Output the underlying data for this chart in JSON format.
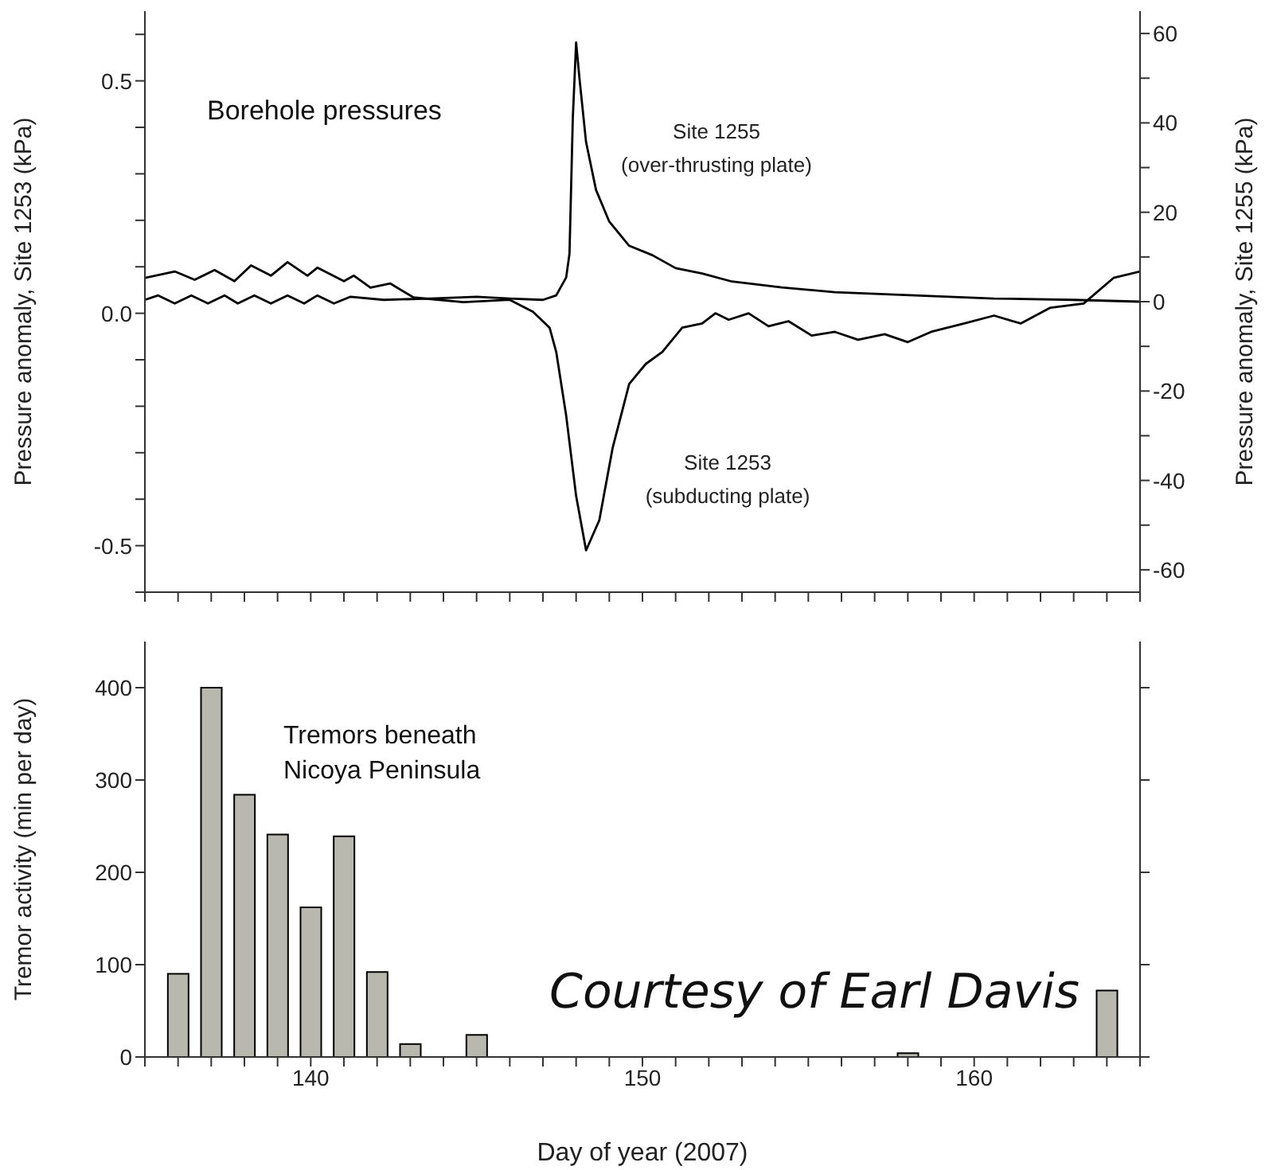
{
  "chart_data": [
    {
      "type": "line",
      "ylabel": "Pressure anomaly, Site 1253 (kPa)",
      "y2label": "Pressure anomaly, Site 1255 (kPa)",
      "annotations": [
        "Borehole pressures"
      ],
      "xlim": [
        135,
        165
      ],
      "ylim": [
        -0.6,
        0.65
      ],
      "y2lim": [
        -65,
        65
      ],
      "tick_labels": "y",
      "xticks": [
        {
          "value": 135,
          "label": null
        },
        {
          "value": 136,
          "label": null
        },
        {
          "value": 137,
          "label": null
        },
        {
          "value": 138,
          "label": null
        },
        {
          "value": 139,
          "label": null
        },
        {
          "value": 140,
          "label": null
        },
        {
          "value": 141,
          "label": null
        },
        {
          "value": 142,
          "label": null
        },
        {
          "value": 143,
          "label": null
        },
        {
          "value": 144,
          "label": null
        },
        {
          "value": 145,
          "label": null
        },
        {
          "value": 146,
          "label": null
        },
        {
          "value": 147,
          "label": null
        },
        {
          "value": 148,
          "label": null
        },
        {
          "value": 149,
          "label": null
        },
        {
          "value": 150,
          "label": null
        },
        {
          "value": 151,
          "label": null
        },
        {
          "value": 152,
          "label": null
        },
        {
          "value": 153,
          "label": null
        },
        {
          "value": 154,
          "label": null
        },
        {
          "value": 155,
          "label": null
        },
        {
          "value": 156,
          "label": null
        },
        {
          "value": 157,
          "label": null
        },
        {
          "value": 158,
          "label": null
        },
        {
          "value": 159,
          "label": null
        },
        {
          "value": 160,
          "label": null
        },
        {
          "value": 161,
          "label": null
        },
        {
          "value": 162,
          "label": null
        },
        {
          "value": 163,
          "label": null
        },
        {
          "value": 164,
          "label": null
        },
        {
          "value": 165,
          "label": null
        }
      ],
      "yticks": [
        {
          "value": -0.6,
          "label": null
        },
        -0.5,
        {
          "value": -0.4,
          "label": null
        },
        {
          "value": -0.3,
          "label": null
        },
        {
          "value": -0.2,
          "label": null
        },
        {
          "value": -0.1,
          "label": null
        },
        {
          "value": 0,
          "label": "0.0"
        },
        {
          "value": 0.1,
          "label": null
        },
        {
          "value": 0.2,
          "label": null
        },
        {
          "value": 0.3,
          "label": null
        },
        {
          "value": 0.4,
          "label": null
        },
        0.5,
        {
          "value": 0.6,
          "label": null
        }
      ],
      "y2ticks": [
        -60,
        {
          "value": -50,
          "label": null
        },
        -40,
        {
          "value": -30,
          "label": null
        },
        -20,
        {
          "value": -10,
          "label": null
        },
        0,
        {
          "value": 10,
          "label": null
        },
        20,
        {
          "value": 30,
          "label": null
        },
        40,
        {
          "value": 50,
          "label": null
        },
        60
      ],
      "series": [
        {
          "name": "Site 1253\n(subducting plate)",
          "color": "#000000",
          "x": [
            135,
            135.9,
            136.5,
            137.1,
            137.7,
            138.2,
            138.8,
            139.3,
            139.9,
            140.2,
            141,
            141.3,
            141.8,
            142.4,
            143.1,
            144.6,
            146,
            146.7,
            147.2,
            147.4,
            147.7,
            148,
            148.3,
            148.7,
            149.1,
            149.6,
            150.1,
            150.6,
            151.2,
            151.8,
            152.2,
            152.6,
            153.2,
            153.8,
            154.4,
            155.1,
            155.8,
            156.5,
            157.3,
            158,
            158.7,
            159.7,
            160.6,
            161.4,
            162.3,
            163.3,
            164.2,
            165
          ],
          "values": [
            0.076,
            0.09,
            0.072,
            0.093,
            0.069,
            0.103,
            0.081,
            0.11,
            0.081,
            0.098,
            0.069,
            0.081,
            0.055,
            0.064,
            0.034,
            0.024,
            0.029,
            0.003,
            -0.031,
            -0.083,
            -0.22,
            -0.393,
            -0.51,
            -0.445,
            -0.29,
            -0.152,
            -0.109,
            -0.083,
            -0.031,
            -0.022,
            0,
            -0.014,
            0,
            -0.028,
            -0.017,
            -0.048,
            -0.04,
            -0.057,
            -0.045,
            -0.062,
            -0.04,
            -0.022,
            -0.005,
            -0.022,
            0.012,
            0.021,
            0.076,
            0.09
          ]
        },
        {
          "name": "Site 1255\n(over-thrusting plate)",
          "color": "#000000",
          "axis": "y2",
          "x": [
            135,
            135.4,
            135.9,
            136.4,
            136.9,
            137.4,
            137.8,
            138.3,
            138.8,
            139.3,
            139.8,
            140.2,
            140.7,
            141.2,
            142.2,
            143.6,
            145,
            146,
            147,
            147.4,
            147.7,
            147.8,
            147.9,
            148,
            148.1,
            148.3,
            148.6,
            149,
            149.6,
            150.3,
            151,
            151.8,
            152.7,
            154.2,
            155.8,
            158.2,
            160.6,
            163,
            165
          ],
          "values": [
            0.4,
            1.4,
            -0.4,
            1.4,
            -0.4,
            1.4,
            -0.4,
            1.4,
            -0.4,
            1.4,
            -0.4,
            1.4,
            -0.4,
            1.1,
            0.4,
            0.7,
            1.1,
            0.7,
            0.4,
            1.4,
            5.4,
            10.7,
            41,
            58,
            50,
            35.7,
            25,
            17.9,
            12.5,
            10.4,
            7.5,
            6.3,
            4.5,
            3.2,
            2.1,
            1.4,
            0.7,
            0.4,
            0
          ]
        }
      ]
    },
    {
      "type": "bar",
      "xlabel": "Day of year (2007)",
      "ylabel": "Tremor activity (min per day)",
      "annotations": [
        "Tremors beneath\nNicoya Peninsula",
        "Courtesy of Earl Davis"
      ],
      "xlim": [
        135,
        165
      ],
      "ylim": [
        0,
        450
      ],
      "yticks": [
        0,
        100,
        200,
        300,
        400
      ],
      "color": "#b8b8ae",
      "xticks": [
        {
          "value": 135,
          "label": null
        },
        {
          "value": 136,
          "label": null
        },
        {
          "value": 137,
          "label": null
        },
        {
          "value": 138,
          "label": null
        },
        {
          "value": 139,
          "label": null
        },
        140,
        {
          "value": 141,
          "label": null
        },
        {
          "value": 142,
          "label": null
        },
        {
          "value": 143,
          "label": null
        },
        {
          "value": 144,
          "label": null
        },
        {
          "value": 145,
          "label": null
        },
        {
          "value": 146,
          "label": null
        },
        {
          "value": 147,
          "label": null
        },
        {
          "value": 148,
          "label": null
        },
        {
          "value": 149,
          "label": null
        },
        150,
        {
          "value": 151,
          "label": null
        },
        {
          "value": 152,
          "label": null
        },
        {
          "value": 153,
          "label": null
        },
        {
          "value": 154,
          "label": null
        },
        {
          "value": 155,
          "label": null
        },
        {
          "value": 156,
          "label": null
        },
        {
          "value": 157,
          "label": null
        },
        {
          "value": 158,
          "label": null
        },
        {
          "value": 159,
          "label": null
        },
        160,
        {
          "value": 161,
          "label": null
        },
        {
          "value": 162,
          "label": null
        },
        {
          "value": 163,
          "label": null
        },
        {
          "value": 164,
          "label": null
        },
        {
          "value": 165,
          "label": null
        }
      ],
      "x": [
        136,
        137,
        138,
        139,
        140,
        141,
        142,
        143,
        145,
        158,
        164
      ],
      "values": [
        90,
        400,
        284,
        241,
        162,
        239,
        92,
        14,
        24,
        4,
        72
      ]
    }
  ]
}
